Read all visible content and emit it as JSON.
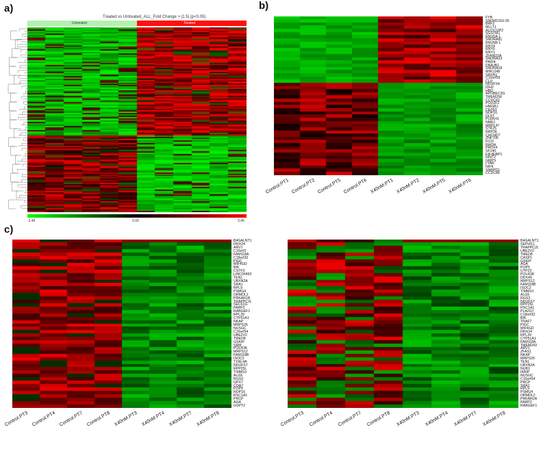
{
  "panel_labels": {
    "a": "a)",
    "b": "b)",
    "c": "c)"
  },
  "panel_a": {
    "title": "Treated vs Untreated_ALL_Fold Change > |1.5| (p<0.05)",
    "group_untreated": "Untreated",
    "group_treated": "Treated",
    "scale_min": "-3.46",
    "scale_mid": "0.00",
    "scale_max": "3.46",
    "colors": {
      "low": "#00ff00",
      "mid": "#000000",
      "high": "#ff0000",
      "untreated_bar": "#b6f0b0",
      "treated_bar": "#ff1010"
    }
  },
  "panel_b": {
    "columns": [
      "Control.PT1",
      "Control.PT2",
      "Control.PT5",
      "Control.PT6",
      "X40nM.PT1",
      "X40nM.PT2",
      "X40nM.PT5",
      "X40nM.PT6"
    ],
    "genes": [
      "FYB",
      "SNORD116-26",
      "BRF2",
      "MLLT1",
      "ALOX12P2",
      "SGSTM1",
      "RNU5A-1",
      "SNORA81",
      "RNU5B-1",
      "RNY4",
      "RNY5",
      "RNY1",
      "ZFAND2A",
      "SNORA23",
      "PADI4",
      "DNAJB1",
      "SNORA18",
      "MIR1248",
      "SRXN1",
      "C10orf55",
      "CLU",
      "NDUFS4",
      "IDH2",
      "HBD",
      "APOBEC3G",
      "TMEM258",
      "CCDC62",
      "POU2F2",
      "HMGB1",
      "CEP63",
      "NOP16",
      "DLST",
      "PLEKH1",
      "NME1",
      "MRPL47",
      "STK25",
      "RRP36",
      "CHCHD7",
      "ZNF706",
      "FICD",
      "RHOH",
      "PRDX4",
      "SF140",
      "EIF4EBP1",
      "HINT2",
      "GMPS",
      "LYAR",
      "NIFK",
      "SNRPD1",
      "CCDC86"
    ]
  },
  "panel_c_left": {
    "columns": [
      "Control.PT3",
      "Control.PT4",
      "Control.PT7",
      "Control.PT8",
      "X40nM.PT3",
      "X40nM.PT4",
      "X40nM.PT7",
      "X40nM.PT8"
    ],
    "genes": [
      "B4GALNT1",
      "FBXO4",
      "ARV1",
      "C10orf2",
      "FAM118A",
      "C18orf32",
      "PIGC",
      "MIF4GD",
      "BIK",
      "CSTF3",
      "LINC00493",
      "TEN1",
      "UBXN2A",
      "SRA1",
      "RPL9",
      "PSMG4",
      "ORMDL2",
      "PRKAR2A",
      "TRAPPC2L",
      "SEC61G",
      "PARP2",
      "RABGEF1",
      "RPL39",
      "CYP51A1",
      "NKAP",
      "MRPS26",
      "NUSGC",
      "C16orf54",
      "UBE2V2",
      "TMED8",
      "GSKIP",
      "SRM",
      "POLR3K",
      "MRPS12",
      "FAM118B",
      "ISOC2",
      "TXNL4A",
      "NDUFS7",
      "RPP25L",
      "TIMM10",
      "ALG5",
      "RGS3",
      "GPX7",
      "COA7",
      "POP5",
      "NOP16",
      "RSC1A1",
      "PRCP",
      "AGA",
      "GSPT2"
    ]
  },
  "panel_c_right": {
    "columns": [
      "Control.PT3",
      "Control.PT4",
      "Control.PT7",
      "Control.PT8",
      "X40nM.PT3",
      "X40nM.PT4",
      "X40nM.PT7",
      "X40nM.PT8"
    ],
    "genes": [
      "B4GALNT1",
      "SEPHS1",
      "TRAPPC2L",
      "UBE2V2",
      "TMED8",
      "CASP1",
      "GSKIP",
      "AGA",
      "POP5",
      "UTP23",
      "POLR3K",
      "DDX49",
      "MRPS12",
      "FAM118B",
      "ISOC2",
      "TIMM10",
      "ALG5",
      "RGS3",
      "NDUFS7",
      "RPP25L",
      "RSC1A1",
      "PLA2G7",
      "C18orf32",
      "BIK",
      "TRAF7",
      "PIGC",
      "MIF4GD",
      "FBXO4",
      "RPL39",
      "CYP51A1",
      "FAM118A",
      "TMEM243",
      "ARV1",
      "ZFAS1",
      "NKAP",
      "MRPS26",
      "TEN1",
      "UBXN2A",
      "NUB1",
      "IKBIP",
      "NUSGC",
      "C16orf54",
      "PRCP",
      "SRA1",
      "RPL9",
      "PSMG4",
      "ORMDL2",
      "PRKAR2A",
      "PARP2",
      "RABGEF1"
    ]
  }
}
